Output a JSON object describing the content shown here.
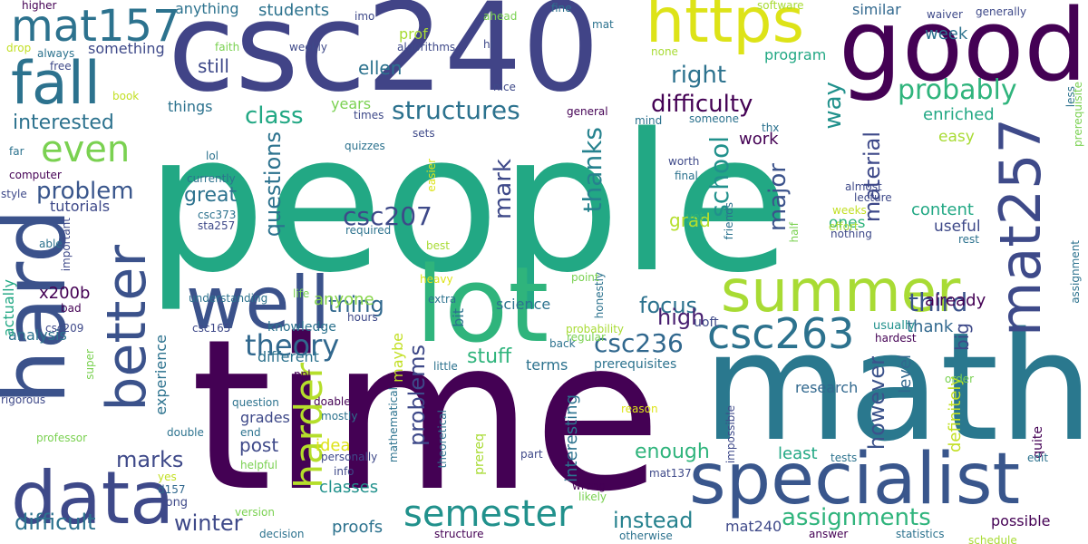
{
  "words": [
    {
      "id": "people",
      "text": "people",
      "color": "#22a884"
    },
    {
      "id": "time",
      "text": "time",
      "color": "#440154"
    },
    {
      "id": "math",
      "text": "math",
      "color": "#2a788e"
    },
    {
      "id": "csc240",
      "text": "csc240",
      "color": "#414487"
    },
    {
      "id": "good",
      "text": "good",
      "color": "#440154"
    },
    {
      "id": "lot",
      "text": "lot",
      "color": "#2fb47c"
    },
    {
      "id": "hard",
      "text": "hard",
      "color": "#3b528b"
    },
    {
      "id": "specialist",
      "text": "specialist",
      "color": "#39568c"
    },
    {
      "id": "data",
      "text": "data",
      "color": "#3e4989"
    },
    {
      "id": "well",
      "text": "well",
      "color": "#3b528b"
    },
    {
      "id": "https",
      "text": "https",
      "color": "#dde318"
    },
    {
      "id": "summer",
      "text": "summer",
      "color": "#a8db34"
    },
    {
      "id": "mat257",
      "text": "mat257",
      "color": "#3e4a89"
    },
    {
      "id": "better",
      "text": "better",
      "color": "#3b528b"
    },
    {
      "id": "fall",
      "text": "fall",
      "color": "#2c728e"
    },
    {
      "id": "mat157",
      "text": "mat157",
      "color": "#2c728e"
    },
    {
      "id": "harder",
      "text": "harder",
      "color": "#b5de2b"
    },
    {
      "id": "csc263",
      "text": "csc263",
      "color": "#2c728e"
    },
    {
      "id": "semester",
      "text": "semester",
      "color": "#21918c"
    },
    {
      "id": "even",
      "text": "even",
      "color": "#7ad151"
    },
    {
      "id": "difficulty",
      "text": "difficulty",
      "color": "#440154"
    },
    {
      "id": "structures",
      "text": "structures",
      "color": "#2c728e"
    },
    {
      "id": "probably",
      "text": "probably",
      "color": "#2fb47c"
    },
    {
      "id": "right",
      "text": "right",
      "color": "#2c728e"
    },
    {
      "id": "theory",
      "text": "theory",
      "color": "#31688e"
    },
    {
      "id": "csc207",
      "text": "csc207",
      "color": "#3e4989"
    },
    {
      "id": "problem",
      "text": "problem",
      "color": "#39568c"
    },
    {
      "id": "interested",
      "text": "interested",
      "color": "#2c728e"
    },
    {
      "id": "class",
      "text": "class",
      "color": "#22a884"
    },
    {
      "id": "school",
      "text": "school",
      "color": "#21918c"
    },
    {
      "id": "thanks",
      "text": "thanks",
      "color": "#26828e"
    },
    {
      "id": "mark",
      "text": "mark",
      "color": "#3e4989"
    },
    {
      "id": "major",
      "text": "major",
      "color": "#3b528b"
    },
    {
      "id": "material",
      "text": "material",
      "color": "#3e4989"
    },
    {
      "id": "way",
      "text": "way",
      "color": "#21918c"
    },
    {
      "id": "third",
      "text": "third",
      "color": "#3b528b"
    },
    {
      "id": "csc236",
      "text": "csc236",
      "color": "#31688e"
    },
    {
      "id": "assignments",
      "text": "assignments",
      "color": "#2fb47c"
    },
    {
      "id": "instead",
      "text": "instead",
      "color": "#26828e"
    },
    {
      "id": "winter",
      "text": "winter",
      "color": "#3e4989"
    },
    {
      "id": "difficult",
      "text": "difficult",
      "color": "#2c728e"
    },
    {
      "id": "focus",
      "text": "focus",
      "color": "#2c728e"
    },
    {
      "id": "marks",
      "text": "marks",
      "color": "#3e4989"
    },
    {
      "id": "problems",
      "text": "problems",
      "color": "#3e4989"
    },
    {
      "id": "however",
      "text": "however",
      "color": "#3b528b"
    },
    {
      "id": "questions",
      "text": "questions",
      "color": "#2c728e"
    },
    {
      "id": "high",
      "text": "high",
      "color": "#481f70"
    },
    {
      "id": "stuff",
      "text": "stuff",
      "color": "#2fb47c"
    },
    {
      "id": "thing",
      "text": "thing",
      "color": "#31688e"
    },
    {
      "id": "great",
      "text": "great",
      "color": "#2c728e"
    },
    {
      "id": "enough",
      "text": "enough",
      "color": "#2fb47c"
    },
    {
      "id": "post",
      "text": "post",
      "color": "#3e4989"
    },
    {
      "id": "already",
      "text": "already",
      "color": "#440154"
    },
    {
      "id": "thank",
      "text": "thank",
      "color": "#31688e"
    },
    {
      "id": "content",
      "text": "content",
      "color": "#22a884"
    },
    {
      "id": "grad",
      "text": "grad",
      "color": "#b5de2b"
    },
    {
      "id": "big",
      "text": "big",
      "color": "#3e4989"
    },
    {
      "id": "level",
      "text": "level",
      "color": "#31688e"
    },
    {
      "id": "definitely",
      "text": "definitely",
      "color": "#c2df23"
    },
    {
      "id": "interesting",
      "text": "interesting",
      "color": "#2c728e"
    },
    {
      "id": "enriched",
      "text": "enriched",
      "color": "#22a884"
    },
    {
      "id": "work",
      "text": "work",
      "color": "#440154"
    },
    {
      "id": "ones",
      "text": "ones",
      "color": "#2fb47c"
    },
    {
      "id": "easy",
      "text": "easy",
      "color": "#a8db34"
    },
    {
      "id": "useful",
      "text": "useful",
      "color": "#3e4989"
    },
    {
      "id": "ellen",
      "text": "ellen",
      "color": "#2c728e"
    },
    {
      "id": "still",
      "text": "still",
      "color": "#3e4989"
    },
    {
      "id": "students",
      "text": "students",
      "color": "#2c728e"
    },
    {
      "id": "anything",
      "text": "anything",
      "color": "#2c728e"
    },
    {
      "id": "similar",
      "text": "similar",
      "color": "#31688e"
    },
    {
      "id": "week",
      "text": "week",
      "color": "#2c728e"
    },
    {
      "id": "things",
      "text": "things",
      "color": "#2c728e"
    },
    {
      "id": "prof",
      "text": "prof",
      "color": "#a8db34"
    },
    {
      "id": "program",
      "text": "program",
      "color": "#22a884"
    },
    {
      "id": "something",
      "text": "something",
      "color": "#3e4989"
    },
    {
      "id": "years",
      "text": "years",
      "color": "#7ad151"
    },
    {
      "id": "anyone",
      "text": "anyone",
      "color": "#86d549"
    },
    {
      "id": "science",
      "text": "science",
      "color": "#2c728e"
    },
    {
      "id": "bit",
      "text": "bit",
      "color": "#2c728e"
    },
    {
      "id": "x200b",
      "text": "x200b",
      "color": "#440154"
    },
    {
      "id": "analysis",
      "text": "analysis",
      "color": "#2c728e"
    },
    {
      "id": "actually",
      "text": "actually",
      "color": "#22a884"
    },
    {
      "id": "tutorials",
      "text": "tutorials",
      "color": "#3e4989"
    },
    {
      "id": "experience",
      "text": "experience",
      "color": "#2c728e"
    },
    {
      "id": "maybe",
      "text": "maybe",
      "color": "#c2df23"
    },
    {
      "id": "idea",
      "text": "idea",
      "color": "#dde318"
    },
    {
      "id": "classes",
      "text": "classes",
      "color": "#21918c"
    },
    {
      "id": "proofs",
      "text": "proofs",
      "color": "#2c728e"
    },
    {
      "id": "terms",
      "text": "terms",
      "color": "#2c728e"
    },
    {
      "id": "least",
      "text": "least",
      "color": "#22a884"
    },
    {
      "id": "possible",
      "text": "possible",
      "color": "#440154"
    },
    {
      "id": "research",
      "text": "research",
      "color": "#31688e"
    },
    {
      "id": "quite",
      "text": "quite",
      "color": "#440154"
    },
    {
      "id": "mat240",
      "text": "mat240",
      "color": "#3e4989"
    },
    {
      "id": "grades",
      "text": "grades",
      "color": "#3e4989"
    },
    {
      "id": "different",
      "text": "different",
      "color": "#2c728e"
    },
    {
      "id": "knowledge",
      "text": "knowledge",
      "color": "#2c728e"
    },
    {
      "id": "uoft",
      "text": "uoft",
      "color": "#3e4989"
    },
    {
      "id": "mathematical",
      "text": "mathematical",
      "color": "#2c728e"
    },
    {
      "id": "theoretical",
      "text": "theoretical",
      "color": "#2c728e"
    },
    {
      "id": "prereq",
      "text": "prereq",
      "color": "#a8db34"
    },
    {
      "id": "prerequisites",
      "text": "prerequisites",
      "color": "#2c728e"
    },
    {
      "id": "usually",
      "text": "usually",
      "color": "#21918c"
    },
    {
      "id": "hours",
      "text": "hours",
      "color": "#3e4989"
    },
    {
      "id": "csc165",
      "text": "csc165",
      "color": "#3e4989"
    },
    {
      "id": "csc209",
      "text": "csc209",
      "color": "#3e4989"
    },
    {
      "id": "bad",
      "text": "bad",
      "color": "#440154"
    },
    {
      "id": "rigorous",
      "text": "rigorous",
      "color": "#3e4989"
    },
    {
      "id": "professor",
      "text": "professor",
      "color": "#7ad151"
    },
    {
      "id": "yes",
      "text": "yes",
      "color": "#c2df23"
    },
    {
      "id": "long",
      "text": "long",
      "color": "#3e4989"
    },
    {
      "id": "d157",
      "text": "d157",
      "color": "#31688e"
    },
    {
      "id": "double",
      "text": "double",
      "color": "#2c728e"
    },
    {
      "id": "end",
      "text": "end",
      "color": "#2c728e"
    },
    {
      "id": "helpful",
      "text": "helpful",
      "color": "#7ad151"
    },
    {
      "id": "personally",
      "text": "personally",
      "color": "#3e4989"
    },
    {
      "id": "doable",
      "text": "doable",
      "color": "#440154"
    },
    {
      "id": "mostly",
      "text": "mostly",
      "color": "#2c728e"
    },
    {
      "id": "question",
      "text": "question",
      "color": "#2c728e"
    },
    {
      "id": "info",
      "text": "info",
      "color": "#3e4989"
    },
    {
      "id": "version",
      "text": "version",
      "color": "#7ad151"
    },
    {
      "id": "decision",
      "text": "decision",
      "color": "#2c728e"
    },
    {
      "id": "structure",
      "text": "structure",
      "color": "#440154"
    },
    {
      "id": "otherwise",
      "text": "otherwise",
      "color": "#2c728e"
    },
    {
      "id": "answer",
      "text": "answer",
      "color": "#440154"
    },
    {
      "id": "statistics",
      "text": "statistics",
      "color": "#2c728e"
    },
    {
      "id": "schedule",
      "text": "schedule",
      "color": "#a8db34"
    },
    {
      "id": "mat137",
      "text": "mat137",
      "color": "#3e4989"
    },
    {
      "id": "likely",
      "text": "likely",
      "color": "#7ad151"
    },
    {
      "id": "wrong",
      "text": "wrong",
      "color": "#440154"
    },
    {
      "id": "part",
      "text": "part",
      "color": "#3e4989"
    },
    {
      "id": "tests",
      "text": "tests",
      "color": "#2c728e"
    },
    {
      "id": "edit",
      "text": "edit",
      "color": "#2c728e"
    },
    {
      "id": "reason",
      "text": "reason",
      "color": "#dde318"
    },
    {
      "id": "impossible",
      "text": "impossible",
      "color": "#3e4989"
    },
    {
      "id": "order",
      "text": "order",
      "color": "#7ad151"
    },
    {
      "id": "hardest",
      "text": "hardest",
      "color": "#440154"
    },
    {
      "id": "super",
      "text": "super",
      "color": "#7ad151"
    },
    {
      "id": "regular",
      "text": "regular",
      "color": "#7ad151"
    },
    {
      "id": "ppl",
      "text": "ppl",
      "color": "#440154"
    },
    {
      "id": "little",
      "text": "little",
      "color": "#2c728e"
    },
    {
      "id": "back",
      "text": "back",
      "color": "#2c728e"
    },
    {
      "id": "probability",
      "text": "probability",
      "color": "#a8db34"
    },
    {
      "id": "honestly",
      "text": "honestly",
      "color": "#2c728e"
    },
    {
      "id": "life",
      "text": "life",
      "color": "#7ad151"
    },
    {
      "id": "extra",
      "text": "extra",
      "color": "#2c728e"
    },
    {
      "id": "heavy",
      "text": "heavy",
      "color": "#dde318"
    },
    {
      "id": "best",
      "text": "best",
      "color": "#a8db34"
    },
    {
      "id": "point",
      "text": "point",
      "color": "#7ad151"
    },
    {
      "id": "understanding",
      "text": "understanding",
      "color": "#2c728e"
    },
    {
      "id": "important",
      "text": "important",
      "color": "#3e4989"
    },
    {
      "id": "able",
      "text": "able",
      "color": "#2c728e"
    },
    {
      "id": "required",
      "text": "required",
      "color": "#2c728e"
    },
    {
      "id": "sta257",
      "text": "sta257",
      "color": "#3e4989"
    },
    {
      "id": "csc373",
      "text": "csc373",
      "color": "#2c728e"
    },
    {
      "id": "currently",
      "text": "currently",
      "color": "#2c728e"
    },
    {
      "id": "style",
      "text": "style",
      "color": "#3e4989"
    },
    {
      "id": "computer",
      "text": "computer",
      "color": "#440154"
    },
    {
      "id": "far",
      "text": "far",
      "color": "#2c728e"
    },
    {
      "id": "book",
      "text": "book",
      "color": "#c2df23"
    },
    {
      "id": "drop",
      "text": "drop",
      "color": "#c2df23"
    },
    {
      "id": "higher",
      "text": "higher",
      "color": "#440154"
    },
    {
      "id": "always",
      "text": "always",
      "color": "#2c728e"
    },
    {
      "id": "free",
      "text": "free",
      "color": "#3e4989"
    },
    {
      "id": "faith",
      "text": "faith",
      "color": "#7ad151"
    },
    {
      "id": "weekly",
      "text": "weekly",
      "color": "#3e4989"
    },
    {
      "id": "imo",
      "text": "imo",
      "color": "#3e4989"
    },
    {
      "id": "algorithms",
      "text": "algorithms",
      "color": "#3e4989"
    },
    {
      "id": "ahead",
      "text": "ahead",
      "color": "#7ad151"
    },
    {
      "id": "hi",
      "text": "hi",
      "color": "#3e4989"
    },
    {
      "id": "nice",
      "text": "nice",
      "color": "#3e4989"
    },
    {
      "id": "fine",
      "text": "fine",
      "color": "#2c728e"
    },
    {
      "id": "mat",
      "text": "mat",
      "color": "#2c728e"
    },
    {
      "id": "none",
      "text": "none",
      "color": "#a8db34"
    },
    {
      "id": "software",
      "text": "software",
      "color": "#a8db34"
    },
    {
      "id": "waiver",
      "text": "waiver",
      "color": "#3e4989"
    },
    {
      "id": "generally",
      "text": "generally",
      "color": "#3e4989"
    },
    {
      "id": "times",
      "text": "times",
      "color": "#3e4989"
    },
    {
      "id": "sets",
      "text": "sets",
      "color": "#3e4989"
    },
    {
      "id": "lol",
      "text": "lol",
      "color": "#2c728e"
    },
    {
      "id": "quizzes",
      "text": "quizzes",
      "color": "#2c728e"
    },
    {
      "id": "general",
      "text": "general",
      "color": "#440154"
    },
    {
      "id": "mind",
      "text": "mind",
      "color": "#2c728e"
    },
    {
      "id": "someone",
      "text": "someone",
      "color": "#2c728e"
    },
    {
      "id": "thx",
      "text": "thx",
      "color": "#2c728e"
    },
    {
      "id": "less",
      "text": "less",
      "color": "#2c728e"
    },
    {
      "id": "prerequisite",
      "text": "prerequisite",
      "color": "#7ad151"
    },
    {
      "id": "worth",
      "text": "worth",
      "color": "#3e4989"
    },
    {
      "id": "final",
      "text": "final",
      "color": "#2c728e"
    },
    {
      "id": "easier",
      "text": "easier",
      "color": "#dde318"
    },
    {
      "id": "almost",
      "text": "almost",
      "color": "#3e4989"
    },
    {
      "id": "lecture",
      "text": "lecture",
      "color": "#3e4989"
    },
    {
      "id": "weeks",
      "text": "weeks",
      "color": "#c2df23"
    },
    {
      "id": "friends",
      "text": "friends",
      "color": "#2c728e"
    },
    {
      "id": "effort",
      "text": "effort",
      "color": "#a8db34"
    },
    {
      "id": "nothing",
      "text": "nothing",
      "color": "#3e4989"
    },
    {
      "id": "half",
      "text": "half",
      "color": "#7ad151"
    },
    {
      "id": "rest",
      "text": "rest",
      "color": "#2c728e"
    },
    {
      "id": "assignment",
      "text": "assignment",
      "color": "#2c728e"
    },
    {
      "id": "yet",
      "text": "yet",
      "color": "#2fb47c"
    }
  ]
}
